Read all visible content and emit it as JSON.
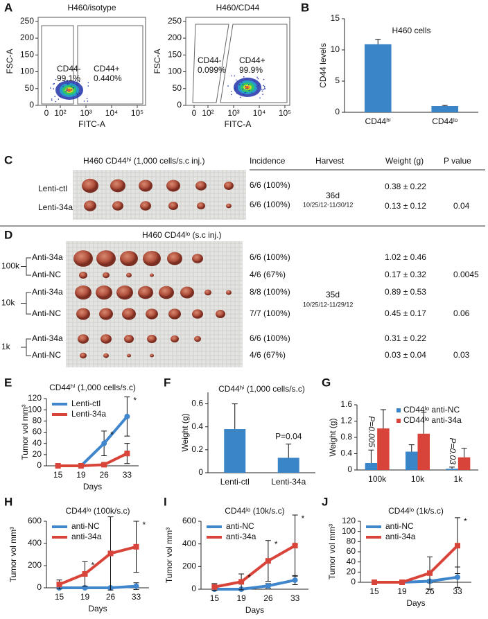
{
  "panel_labels": [
    "A",
    "B",
    "C",
    "D",
    "E",
    "F",
    "G",
    "H",
    "I",
    "J"
  ],
  "flow": [
    {
      "title": "H460/isotype",
      "y_label": "FSC-A",
      "x_label": "FITC-A",
      "ylim": [
        0,
        262
      ],
      "yticks": [
        0,
        50,
        100,
        150,
        200,
        250
      ],
      "xticks": [
        0,
        {
          "value": 100,
          "label": "10²"
        },
        {
          "value": 1000,
          "label": "10³"
        },
        {
          "value": 10000,
          "label": "10⁴"
        },
        {
          "value": 100000,
          "label": "10⁵"
        }
      ],
      "gates": [
        {
          "name": "CD44-",
          "percent": "99.1%"
        },
        {
          "name": "CD44+",
          "percent": "0.440%"
        }
      ]
    },
    {
      "title": "H460/CD44",
      "y_label": "FSC-A",
      "x_label": "FITC-A",
      "ylim": [
        0,
        262
      ],
      "yticks": [
        0,
        50,
        100,
        150,
        200,
        250
      ],
      "xticks": [
        0,
        {
          "value": 100,
          "label": "10²"
        },
        {
          "value": 1000,
          "label": "10³"
        },
        {
          "value": 10000,
          "label": "10⁴"
        },
        {
          "value": 100000,
          "label": "10⁵"
        }
      ],
      "gates": [
        {
          "name": "CD44-",
          "percent": "0.099%"
        },
        {
          "name": "CD44+",
          "percent": "99.9%"
        }
      ]
    }
  ],
  "table_c": {
    "title": "H460 CD44ʰⁱ (1,000 cells/s.c inj.)",
    "headers": [
      "Incidence",
      "Harvest",
      "Weight (g)",
      "P value"
    ],
    "harvest": "36d",
    "dates": "10/25/12-11/30/12",
    "rows": [
      {
        "name": "Lenti-ctl",
        "incidence": "6/6 (100%)",
        "weight": "0.38 ± 0.22"
      },
      {
        "name": "Lenti-34a",
        "incidence": "6/6 (100%)",
        "weight": "0.13 ± 0.12",
        "p_value": "0.04"
      }
    ]
  },
  "table_d": {
    "title": "H460 CD44ˡᵒ (s.c inj.)",
    "harvest": "35d",
    "dates": "10/25/12-11/29/12",
    "groups": [
      {
        "label": "100k",
        "p_value": "0.0045",
        "rows": [
          {
            "name": "Anti-34a",
            "incidence": "6/6 (100%)",
            "weight": "1.02 ± 0.46"
          },
          {
            "name": "Anti-NC",
            "incidence": "4/6 (67%)",
            "weight": "0.17 ± 0.32"
          }
        ]
      },
      {
        "label": "10k",
        "p_value": "0.06",
        "rows": [
          {
            "name": "Anti-34a",
            "incidence": "8/8 (100%)",
            "weight": "0.89 ± 0.53"
          },
          {
            "name": "Anti-NC",
            "incidence": "7/7 (100%)",
            "weight": "0.45 ± 0.17"
          }
        ]
      },
      {
        "label": "1k",
        "p_value": "0.03",
        "rows": [
          {
            "name": "Anti-34a",
            "incidence": "6/6 (100%)",
            "weight": "0.31 ± 0.22"
          },
          {
            "name": "Anti-NC",
            "incidence": "4/6 (67%)",
            "weight": "0.03 ± 0.04"
          }
        ]
      }
    ]
  },
  "chart_data": [
    {
      "type": "bar",
      "title": "H460 cells",
      "y_label": "CD44 levels",
      "categories": [
        "CD44ʰⁱ",
        "CD44ˡᵒ"
      ],
      "values": [
        10.9,
        1.0
      ],
      "errors": [
        0.8,
        0.1
      ],
      "color": "#3a85c8",
      "ylim": [
        0,
        15
      ],
      "yticks": [
        0,
        5,
        10,
        15
      ]
    },
    {
      "type": "line",
      "title": "CD44ʰⁱ (1,000 cells/s.c)",
      "y_label": "Tumor vol mm³",
      "x_label": "Days",
      "categories": [
        "15",
        "19",
        "26",
        "33"
      ],
      "ylim": [
        0,
        120
      ],
      "yticks": [
        0,
        20,
        40,
        60,
        80,
        100,
        120
      ],
      "legend": "upper left",
      "series": [
        {
          "name": "Lenti-ctl",
          "color": "#3f86cc",
          "marker": "circle",
          "values": [
            0,
            0,
            40,
            88
          ],
          "errors": [
            0,
            0,
            22,
            35
          ]
        },
        {
          "name": "Lenti-34a",
          "color": "#d9443a",
          "marker": "square",
          "values": [
            0,
            0,
            2,
            22
          ],
          "errors": [
            0,
            0,
            3,
            18
          ]
        }
      ],
      "significance": [
        null,
        null,
        "*",
        "*"
      ]
    },
    {
      "type": "bar",
      "title": "CD44ʰⁱ (1,000 cells/s.c)",
      "y_label": "Weight (g)",
      "categories": [
        "Lenti-ctl",
        "Lenti-34a"
      ],
      "values": [
        0.38,
        0.13
      ],
      "errors": [
        0.22,
        0.12
      ],
      "color": "#3a85c8",
      "ylim": [
        0,
        0.7
      ],
      "yticks": [
        0,
        0.2,
        0.4,
        0.6
      ],
      "annotation": "P=0.04"
    },
    {
      "type": "bar",
      "y_label": "Weight (g)",
      "categories": [
        "100k",
        "10k",
        "1k"
      ],
      "ylim": [
        0,
        1.6
      ],
      "yticks": [
        0,
        0.4,
        0.8,
        1.2,
        1.6
      ],
      "legend": "upper right",
      "series": [
        {
          "name": "CD44ˡᵒ anti-NC",
          "color": "#3a85c8",
          "values": [
            0.17,
            0.45,
            0.03
          ],
          "errors": [
            0.32,
            0.17,
            0.04
          ]
        },
        {
          "name": "CD44ˡᵒ anti-34a",
          "color": "#d9443a",
          "values": [
            1.02,
            0.89,
            0.31
          ],
          "errors": [
            0.46,
            0.53,
            0.22
          ]
        }
      ],
      "p_labels": [
        "P=0.005",
        null,
        "P=0.03"
      ]
    },
    {
      "type": "line",
      "title": "CD44ˡᵒ (100k/s.c)",
      "y_label": "Tumor vol mm³",
      "x_label": "Days",
      "categories": [
        "15",
        "19",
        "26",
        "33"
      ],
      "ylim": [
        0,
        600
      ],
      "yticks": [
        0,
        200,
        400,
        600
      ],
      "legend": "upper left",
      "series": [
        {
          "name": "anti-NC",
          "color": "#3f86cc",
          "marker": "circle",
          "values": [
            0,
            0,
            0,
            15
          ],
          "errors": [
            0,
            0,
            0,
            30
          ]
        },
        {
          "name": "anti-34a",
          "color": "#d9443a",
          "marker": "square",
          "values": [
            30,
            125,
            310,
            370
          ],
          "errors": [
            40,
            110,
            330,
            230
          ]
        }
      ],
      "significance": [
        null,
        "*",
        null,
        "*"
      ]
    },
    {
      "type": "line",
      "title": "CD44ˡᵒ (10k/s.c)",
      "y_label": "Tumor vol mm³",
      "x_label": "Days",
      "categories": [
        "15",
        "19",
        "26",
        "33"
      ],
      "ylim": [
        0,
        600
      ],
      "yticks": [
        0,
        200,
        400,
        600
      ],
      "legend": "upper left",
      "series": [
        {
          "name": "anti-NC",
          "color": "#3f86cc",
          "marker": "circle",
          "values": [
            0,
            0,
            30,
            80
          ],
          "errors": [
            0,
            0,
            20,
            40
          ]
        },
        {
          "name": "anti-34a",
          "color": "#d9443a",
          "marker": "square",
          "values": [
            20,
            65,
            250,
            385
          ],
          "errors": [
            30,
            70,
            180,
            270
          ]
        }
      ],
      "significance": [
        null,
        "*",
        "*",
        "*"
      ]
    },
    {
      "type": "line",
      "title": "CD44ˡᵒ (1k/s.c)",
      "y_label": "Tumor vol mm³",
      "x_label": "Days",
      "categories": [
        "15",
        "19",
        "26",
        "33"
      ],
      "ylim": [
        0,
        120
      ],
      "yticks": [
        0,
        20,
        40,
        60,
        80,
        100,
        120
      ],
      "legend": "upper left",
      "series": [
        {
          "name": "anti-NC",
          "color": "#3f86cc",
          "marker": "circle",
          "values": [
            0,
            0,
            2,
            10
          ],
          "errors": [
            0,
            0,
            3,
            20
          ]
        },
        {
          "name": "anti-34a",
          "color": "#d9443a",
          "marker": "square",
          "values": [
            0,
            0,
            18,
            72
          ],
          "errors": [
            0,
            0,
            32,
            55
          ]
        }
      ],
      "significance": [
        null,
        null,
        null,
        "*"
      ]
    }
  ]
}
